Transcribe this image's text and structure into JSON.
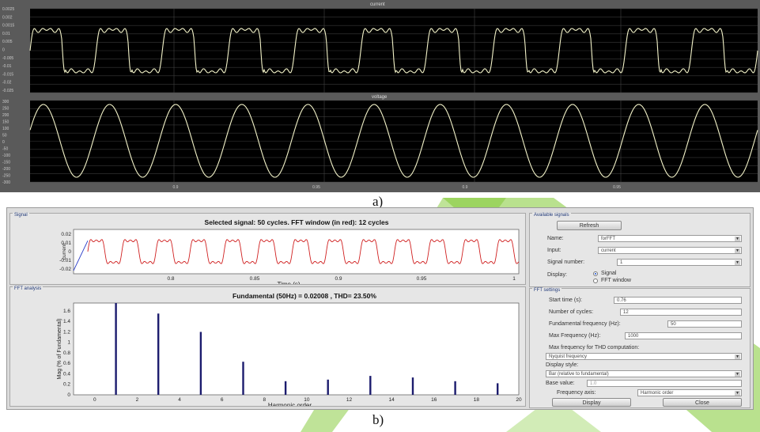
{
  "captions": {
    "a": "a)",
    "b": "b)"
  },
  "scope": {
    "current_title": "current",
    "voltage_title": "voltage",
    "current_yticks": [
      "0.0025",
      "0.002",
      "0.0015",
      "0.01",
      "0.005",
      "0",
      "-0.005",
      "-0.01",
      "-0.015",
      "-0.02",
      "-0.025"
    ],
    "voltage_yticks": [
      "300",
      "250",
      "200",
      "150",
      "100",
      "50",
      "0",
      "-50",
      "-100",
      "-150",
      "-200",
      "-250",
      "-300"
    ],
    "xticks": [
      "0.9",
      "0.95",
      "0.9",
      "0.95"
    ]
  },
  "signal_panel": {
    "title": "Signal",
    "plot_title": "Selected signal: 50 cycles. FFT window (in red): 12 cycles",
    "ylabel": "current",
    "xlabel": "Time (s)",
    "yticks": [
      "0.02",
      "0.01",
      "0",
      "-0.01",
      "-0.02"
    ],
    "xticks": [
      "0.8",
      "0.85",
      "0.9",
      "0.95",
      "1"
    ]
  },
  "fft_panel": {
    "title": "FFT analysis",
    "plot_title": "Fundamental (50Hz) = 0.02008 , THD= 23.50%",
    "ylabel": "Mag (% of Fundamental)",
    "xlabel": "Harmonic order",
    "yticks": [
      "1.6",
      "1.4",
      "1.2",
      "1",
      "0.8",
      "0.6",
      "0.4",
      "0.2",
      "0"
    ],
    "xticks": [
      "0",
      "2",
      "4",
      "6",
      "8",
      "10",
      "12",
      "14",
      "16",
      "18",
      "20"
    ]
  },
  "available_signals": {
    "title": "Available signals",
    "refresh_label": "Refresh",
    "name_label": "Name:",
    "name_value": "forFFT",
    "input_label": "Input:",
    "input_value": "current",
    "signal_number_label": "Signal number:",
    "signal_number_value": "1",
    "display_label": "Display:",
    "display_signal": "Signal",
    "display_fft_window": "FFT window"
  },
  "fft_settings": {
    "title": "FFT settings",
    "start_time_label": "Start time (s):",
    "start_time_value": "0.76",
    "cycles_label": "Number of cycles:",
    "cycles_value": "12",
    "fund_freq_label": "Fundamental frequency (Hz):",
    "fund_freq_value": "50",
    "max_freq_label": "Max Frequency (Hz):",
    "max_freq_value": "1000",
    "thd_freq_label": "Max frequency for THD computation:",
    "thd_freq_value": "Nyquist frequency",
    "display_style_label": "Display style:",
    "display_style_value": "Bar (relative to fundamental)",
    "base_value_label": "Base value:",
    "base_value_value": "1.0",
    "freq_axis_label": "Frequency axis:",
    "freq_axis_value": "Harmonic order",
    "display_button": "Display",
    "close_button": "Close"
  },
  "chart_data": [
    {
      "type": "bar",
      "title": "Fundamental (50Hz) = 0.02008 , THD= 23.50%",
      "xlabel": "Harmonic order",
      "ylabel": "Mag (% of Fundamental)",
      "x": [
        1,
        3,
        5,
        7,
        9,
        11,
        13,
        15,
        17,
        19
      ],
      "values": [
        1.75,
        1.55,
        1.2,
        0.63,
        0.26,
        0.29,
        0.36,
        0.33,
        0.26,
        0.22
      ],
      "xlim": [
        -1,
        20
      ],
      "ylim": [
        0,
        1.75
      ]
    }
  ],
  "colors": {
    "trace_yellow": "#f2f2c8",
    "fft_red": "#d02020",
    "bar_blue": "#1c1c6e",
    "scope_bg": "#5a5a5a",
    "accent_green": "#a8d84a"
  }
}
